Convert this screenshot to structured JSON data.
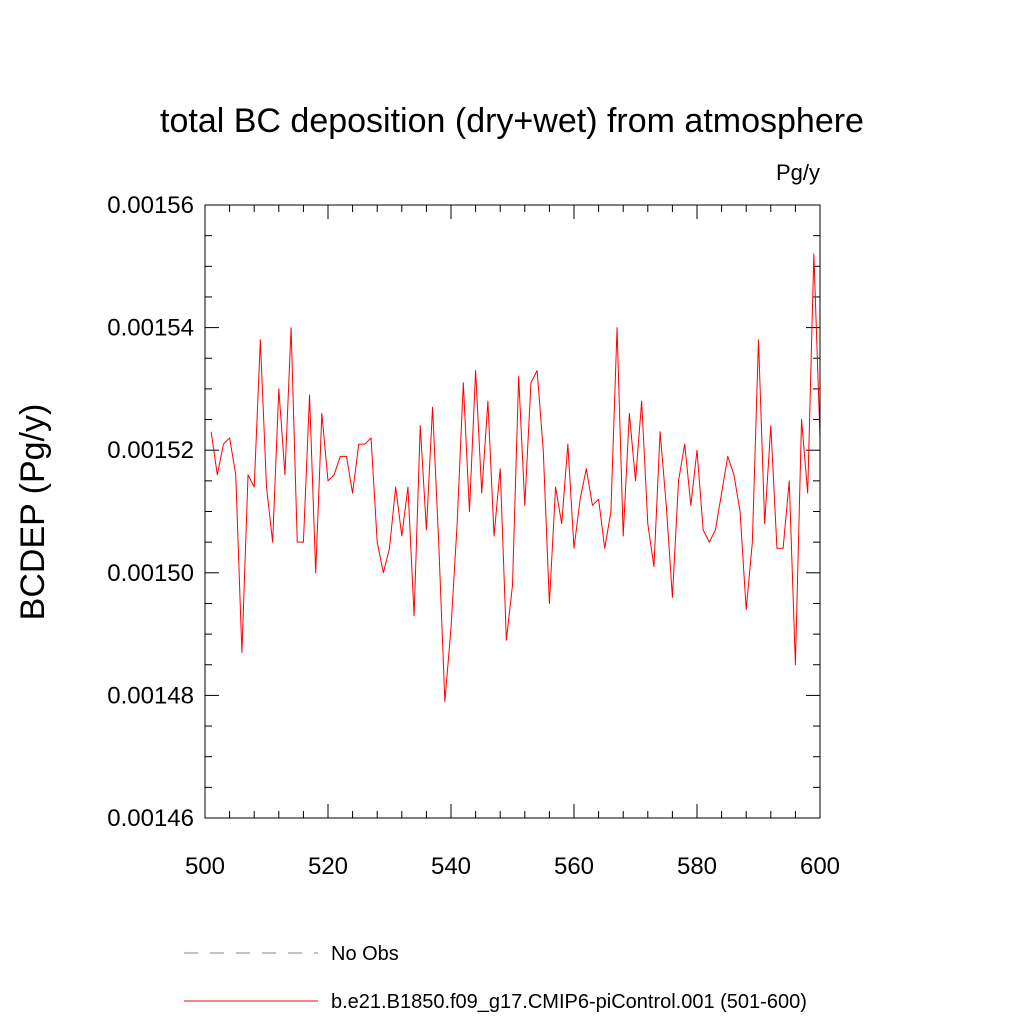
{
  "chart_data": {
    "type": "line",
    "title": "total BC deposition (dry+wet) from atmosphere",
    "units": "Pg/y",
    "ylabel": "BCDEP  (Pg/y)",
    "xlabel": "",
    "xlim": [
      500,
      600
    ],
    "ylim": [
      0.00146,
      0.00156
    ],
    "xticks": [
      "500",
      "520",
      "540",
      "560",
      "580",
      "600"
    ],
    "yticks": [
      "0.00146",
      "0.00148",
      "0.00150",
      "0.00152",
      "0.00154",
      "0.00156"
    ],
    "x_major_step": 20,
    "x_minor_step": 4,
    "y_major_step": 2e-05,
    "y_minor_step": 5e-06,
    "series": [
      {
        "name": "b.e21.B1850.f09_g17.CMIP6-piControl.001 (501-600)",
        "color": "#ff0000",
        "x_start": 501,
        "values": [
          0.001523,
          0.001516,
          0.001521,
          0.001522,
          0.001516,
          0.001487,
          0.001516,
          0.001514,
          0.001538,
          0.001514,
          0.001505,
          0.00153,
          0.001516,
          0.00154,
          0.001505,
          0.001505,
          0.001529,
          0.0015,
          0.001526,
          0.001515,
          0.001516,
          0.001519,
          0.001519,
          0.001513,
          0.001521,
          0.001521,
          0.001522,
          0.001505,
          0.0015,
          0.001504,
          0.001514,
          0.001506,
          0.001514,
          0.001493,
          0.001524,
          0.001507,
          0.001527,
          0.001505,
          0.001479,
          0.001491,
          0.001508,
          0.001531,
          0.00151,
          0.001533,
          0.001513,
          0.001528,
          0.001506,
          0.001517,
          0.001489,
          0.001498,
          0.001532,
          0.001511,
          0.001531,
          0.001533,
          0.00152,
          0.001495,
          0.001514,
          0.001508,
          0.001521,
          0.001504,
          0.001512,
          0.001517,
          0.001511,
          0.001512,
          0.001504,
          0.00151,
          0.00154,
          0.001506,
          0.001526,
          0.001515,
          0.001528,
          0.001508,
          0.001501,
          0.001523,
          0.001511,
          0.001496,
          0.001515,
          0.001521,
          0.001511,
          0.00152,
          0.001507,
          0.001505,
          0.001507,
          0.001513,
          0.001519,
          0.001516,
          0.00151,
          0.001494,
          0.001505,
          0.001538,
          0.001508,
          0.001524,
          0.001504,
          0.001504,
          0.001515,
          0.001485,
          0.001525,
          0.001513,
          0.001552,
          0.001522
        ]
      }
    ],
    "legend": [
      {
        "label": "No Obs",
        "color": "#7f7fbf",
        "style": "dashed"
      },
      {
        "label": "b.e21.B1850.f09_g17.CMIP6-piControl.001 (501-600)",
        "color": "#ff0000",
        "style": "solid"
      }
    ],
    "grid": false,
    "legend_position": "bottom"
  }
}
